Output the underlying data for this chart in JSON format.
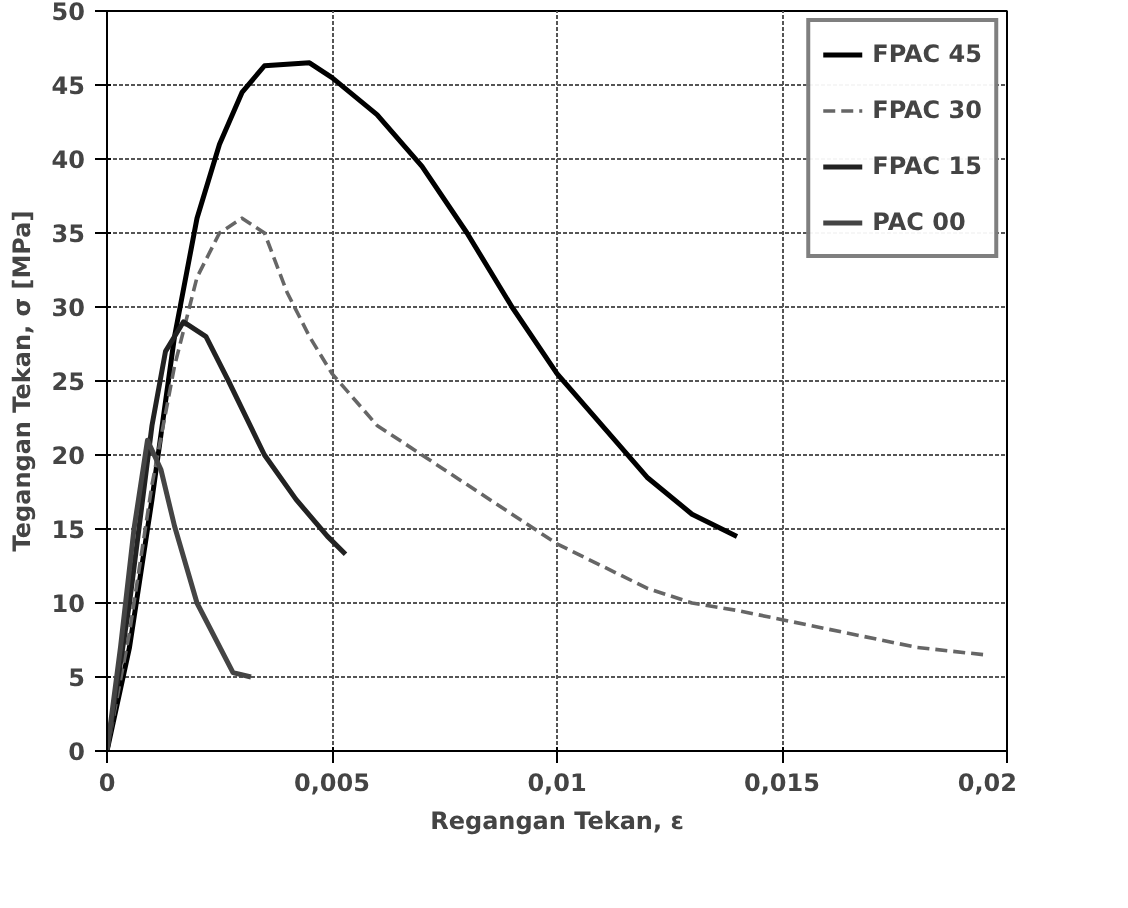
{
  "chart_data": {
    "type": "line",
    "xlabel": "Regangan Tekan, ε",
    "ylabel": "Tegangan Tekan, σ [MPa]",
    "xlim": [
      0,
      0.02
    ],
    "ylim": [
      0,
      50
    ],
    "xticks": [
      0,
      {
        "value": 0.005,
        "label": "0,005"
      },
      {
        "value": 0.01,
        "label": "0,01"
      },
      {
        "value": 0.015,
        "label": "0,015"
      },
      {
        "value": 0.02,
        "label": "0,02"
      }
    ],
    "yticks": [
      0,
      5,
      10,
      15,
      20,
      25,
      30,
      35,
      40,
      45,
      50
    ],
    "grid": true,
    "legend": "top right",
    "marker": "none",
    "series": [
      {
        "name": "FPAC 45",
        "color": "#000000",
        "line_style": "solid",
        "x": [
          0,
          0.0005,
          0.001,
          0.0015,
          0.002,
          0.0025,
          0.003,
          0.0035,
          0.0045,
          0.005,
          0.006,
          0.007,
          0.008,
          0.009,
          0.01,
          0.011,
          0.012,
          0.013,
          0.014
        ],
        "values": [
          0,
          7,
          17,
          28,
          36,
          41,
          44.5,
          46.3,
          46.5,
          45.5,
          43,
          39.5,
          35,
          30,
          25.5,
          22,
          18.5,
          16,
          14.5
        ]
      },
      {
        "name": "FPAC 30",
        "color": "#666666",
        "line_style": "dashed",
        "x": [
          0,
          0.0005,
          0.001,
          0.0015,
          0.002,
          0.0025,
          0.003,
          0.0035,
          0.004,
          0.0045,
          0.005,
          0.006,
          0.007,
          0.008,
          0.009,
          0.01,
          0.011,
          0.012,
          0.013,
          0.014,
          0.018,
          0.0195
        ],
        "values": [
          0,
          8,
          18,
          26,
          32,
          35,
          36,
          35,
          31,
          28,
          25.5,
          22,
          20,
          18,
          16,
          14,
          12.5,
          11,
          10,
          9.5,
          7,
          6.5
        ]
      },
      {
        "name": "FPAC 15",
        "color": "#222222",
        "line_style": "solid",
        "x": [
          0,
          0.0005,
          0.001,
          0.0013,
          0.0017,
          0.0022,
          0.0027,
          0.0035,
          0.0042,
          0.0049,
          0.0053
        ],
        "values": [
          0,
          10,
          22,
          27,
          29,
          28,
          25,
          20,
          17,
          14.5,
          13.3
        ]
      },
      {
        "name": "PAC 00",
        "color": "#444444",
        "line_style": "solid",
        "x": [
          0,
          0.0003,
          0.0006,
          0.0009,
          0.0012,
          0.0015,
          0.002,
          0.0028,
          0.0032
        ],
        "values": [
          0,
          7,
          15,
          21,
          19,
          15.2,
          10,
          5.3,
          5
        ]
      }
    ]
  }
}
